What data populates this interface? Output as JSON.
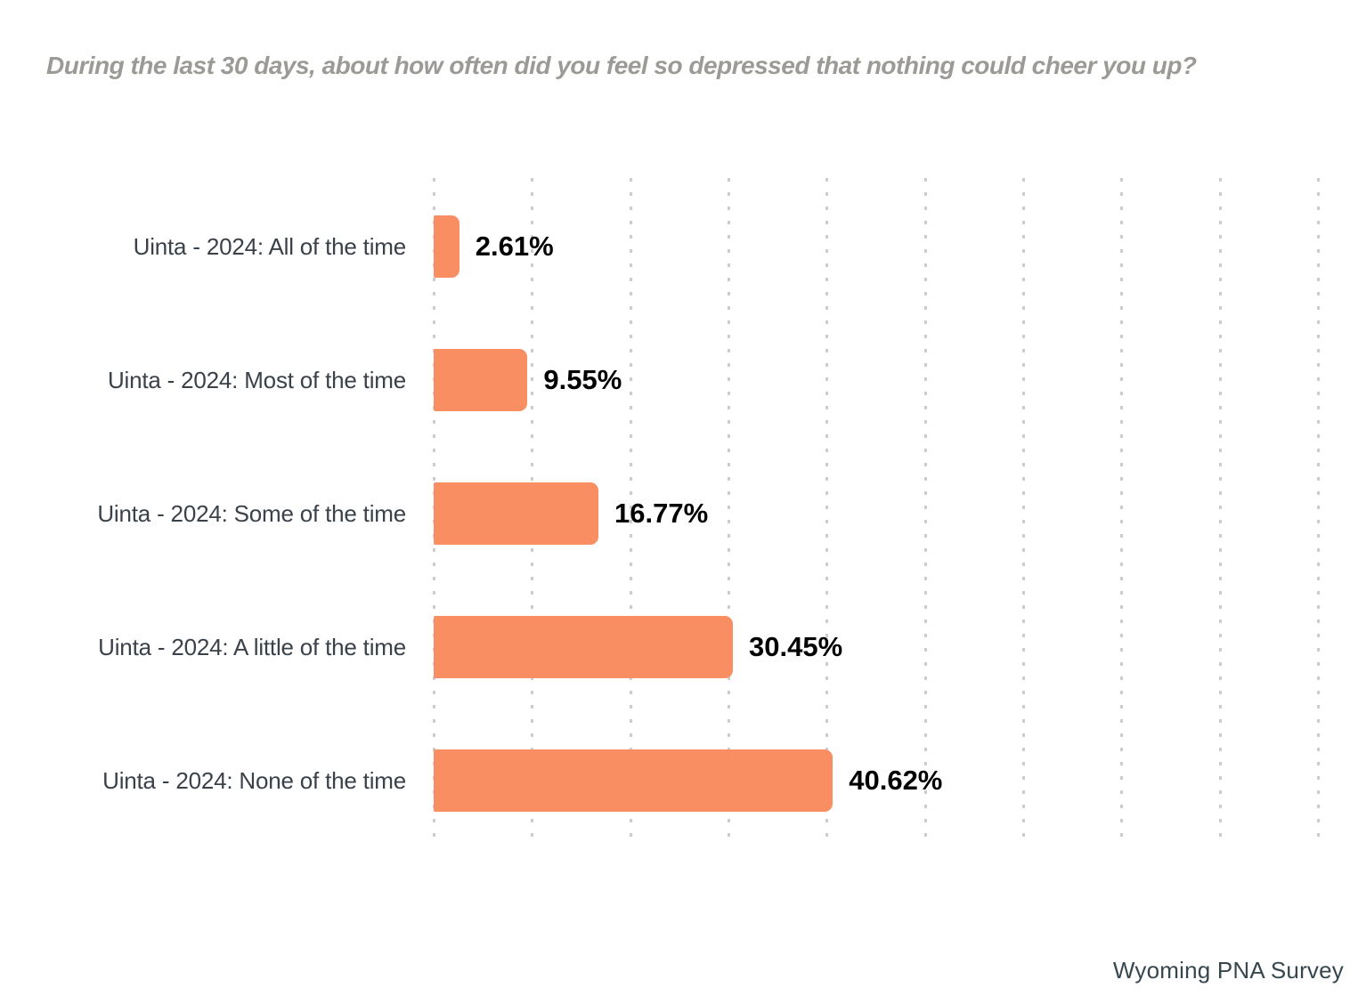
{
  "title": "During the last 30 days, about how often did you feel so depressed that nothing could cheer you up?",
  "footer": "Wyoming PNA Survey",
  "colors": {
    "bar": "#F98E63",
    "title_text": "#9B9A96",
    "category_text": "#3B4149",
    "value_text": "#000000",
    "footer_text": "#37474F",
    "gridline": "#CDCDCD",
    "background": "#FFFFFF"
  },
  "chart_data": {
    "type": "bar",
    "orientation": "horizontal",
    "title": "During the last 30 days, about how often did you feel so depressed that nothing could cheer you up?",
    "categories": [
      "Uinta - 2024: All of the time",
      "Uinta - 2024: Most of the time",
      "Uinta - 2024: Some of the time",
      "Uinta - 2024: A little of the time",
      "Uinta - 2024: None of the time"
    ],
    "values": [
      2.61,
      9.55,
      16.77,
      30.45,
      40.62
    ],
    "value_labels": [
      "2.61%",
      "9.55%",
      "16.77%",
      "30.45%",
      "40.62%"
    ],
    "xlabel": "",
    "ylabel": "",
    "xlim": [
      0,
      91.8
    ],
    "grid": {
      "interval": 10,
      "max": 90,
      "style": "dotted",
      "axis": "x"
    },
    "legend": "none",
    "bar_color": "#F98E63",
    "source": "Wyoming PNA Survey"
  }
}
